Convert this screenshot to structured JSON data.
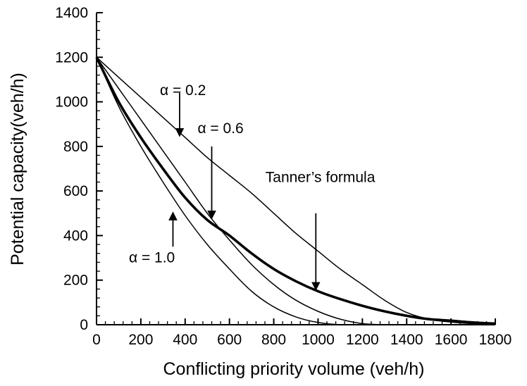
{
  "chart_data": {
    "type": "line",
    "xlabel": "Conflicting priority volume (veh/h)",
    "ylabel": "Potential capacity(veh/h)",
    "xlim": [
      0,
      1800
    ],
    "ylim": [
      0,
      1400
    ],
    "xticks": [
      0,
      200,
      400,
      600,
      800,
      1000,
      1200,
      1400,
      1600,
      1800
    ],
    "yticks": [
      0,
      200,
      400,
      600,
      800,
      1000,
      1200,
      1400
    ],
    "grid": false,
    "series": [
      {
        "name": "Tanner's formula",
        "emphasis": "bold",
        "x": [
          0,
          100,
          200,
          300,
          400,
          500,
          600,
          700,
          800,
          900,
          1000,
          1100,
          1200,
          1300,
          1400,
          1500,
          1600,
          1700,
          1800
        ],
        "y": [
          1200,
          1000,
          840,
          700,
          570,
          470,
          400,
          320,
          250,
          195,
          150,
          115,
          85,
          60,
          40,
          25,
          18,
          10,
          5
        ]
      },
      {
        "name": "α = 0.2",
        "x": [
          0,
          100,
          200,
          300,
          400,
          500,
          600,
          700,
          800,
          900,
          1000,
          1100,
          1200,
          1300,
          1400,
          1500,
          1600,
          1700,
          1800
        ],
        "y": [
          1200,
          1110,
          1020,
          930,
          840,
          750,
          670,
          590,
          500,
          410,
          330,
          250,
          180,
          110,
          55,
          25,
          12,
          5,
          2
        ]
      },
      {
        "name": "α = 0.6",
        "x": [
          0,
          100,
          200,
          300,
          400,
          500,
          600,
          700,
          800,
          900,
          1000,
          1100,
          1200,
          1300,
          1400,
          1500,
          1600,
          1700,
          1800
        ],
        "y": [
          1200,
          1060,
          920,
          780,
          640,
          500,
          380,
          270,
          180,
          110,
          60,
          25,
          5,
          0,
          0,
          0,
          0,
          0,
          0
        ]
      },
      {
        "name": "α = 1.0",
        "x": [
          0,
          100,
          200,
          300,
          400,
          500,
          600,
          700,
          800,
          900,
          1000,
          1100,
          1200,
          1300,
          1400,
          1500,
          1600,
          1700,
          1800
        ],
        "y": [
          1200,
          980,
          800,
          640,
          490,
          360,
          250,
          150,
          80,
          35,
          10,
          0,
          0,
          0,
          0,
          0,
          0,
          0,
          0
        ]
      }
    ],
    "annotations": [
      {
        "text": "α = 0.2",
        "x": 390,
        "y": 1030
      },
      {
        "text": "α = 0.6",
        "x": 560,
        "y": 860
      },
      {
        "text": "Tanner’s formula",
        "x": 1010,
        "y": 640
      },
      {
        "text": "α = 1.0",
        "x": 250,
        "y": 280
      }
    ],
    "arrows": [
      {
        "from": [
          375,
          1040
        ],
        "to": [
          375,
          850
        ]
      },
      {
        "from": [
          520,
          800
        ],
        "to": [
          520,
          480
        ]
      },
      {
        "from": [
          990,
          500
        ],
        "to": [
          990,
          160
        ]
      },
      {
        "from": [
          345,
          350
        ],
        "to": [
          345,
          500
        ]
      }
    ]
  }
}
